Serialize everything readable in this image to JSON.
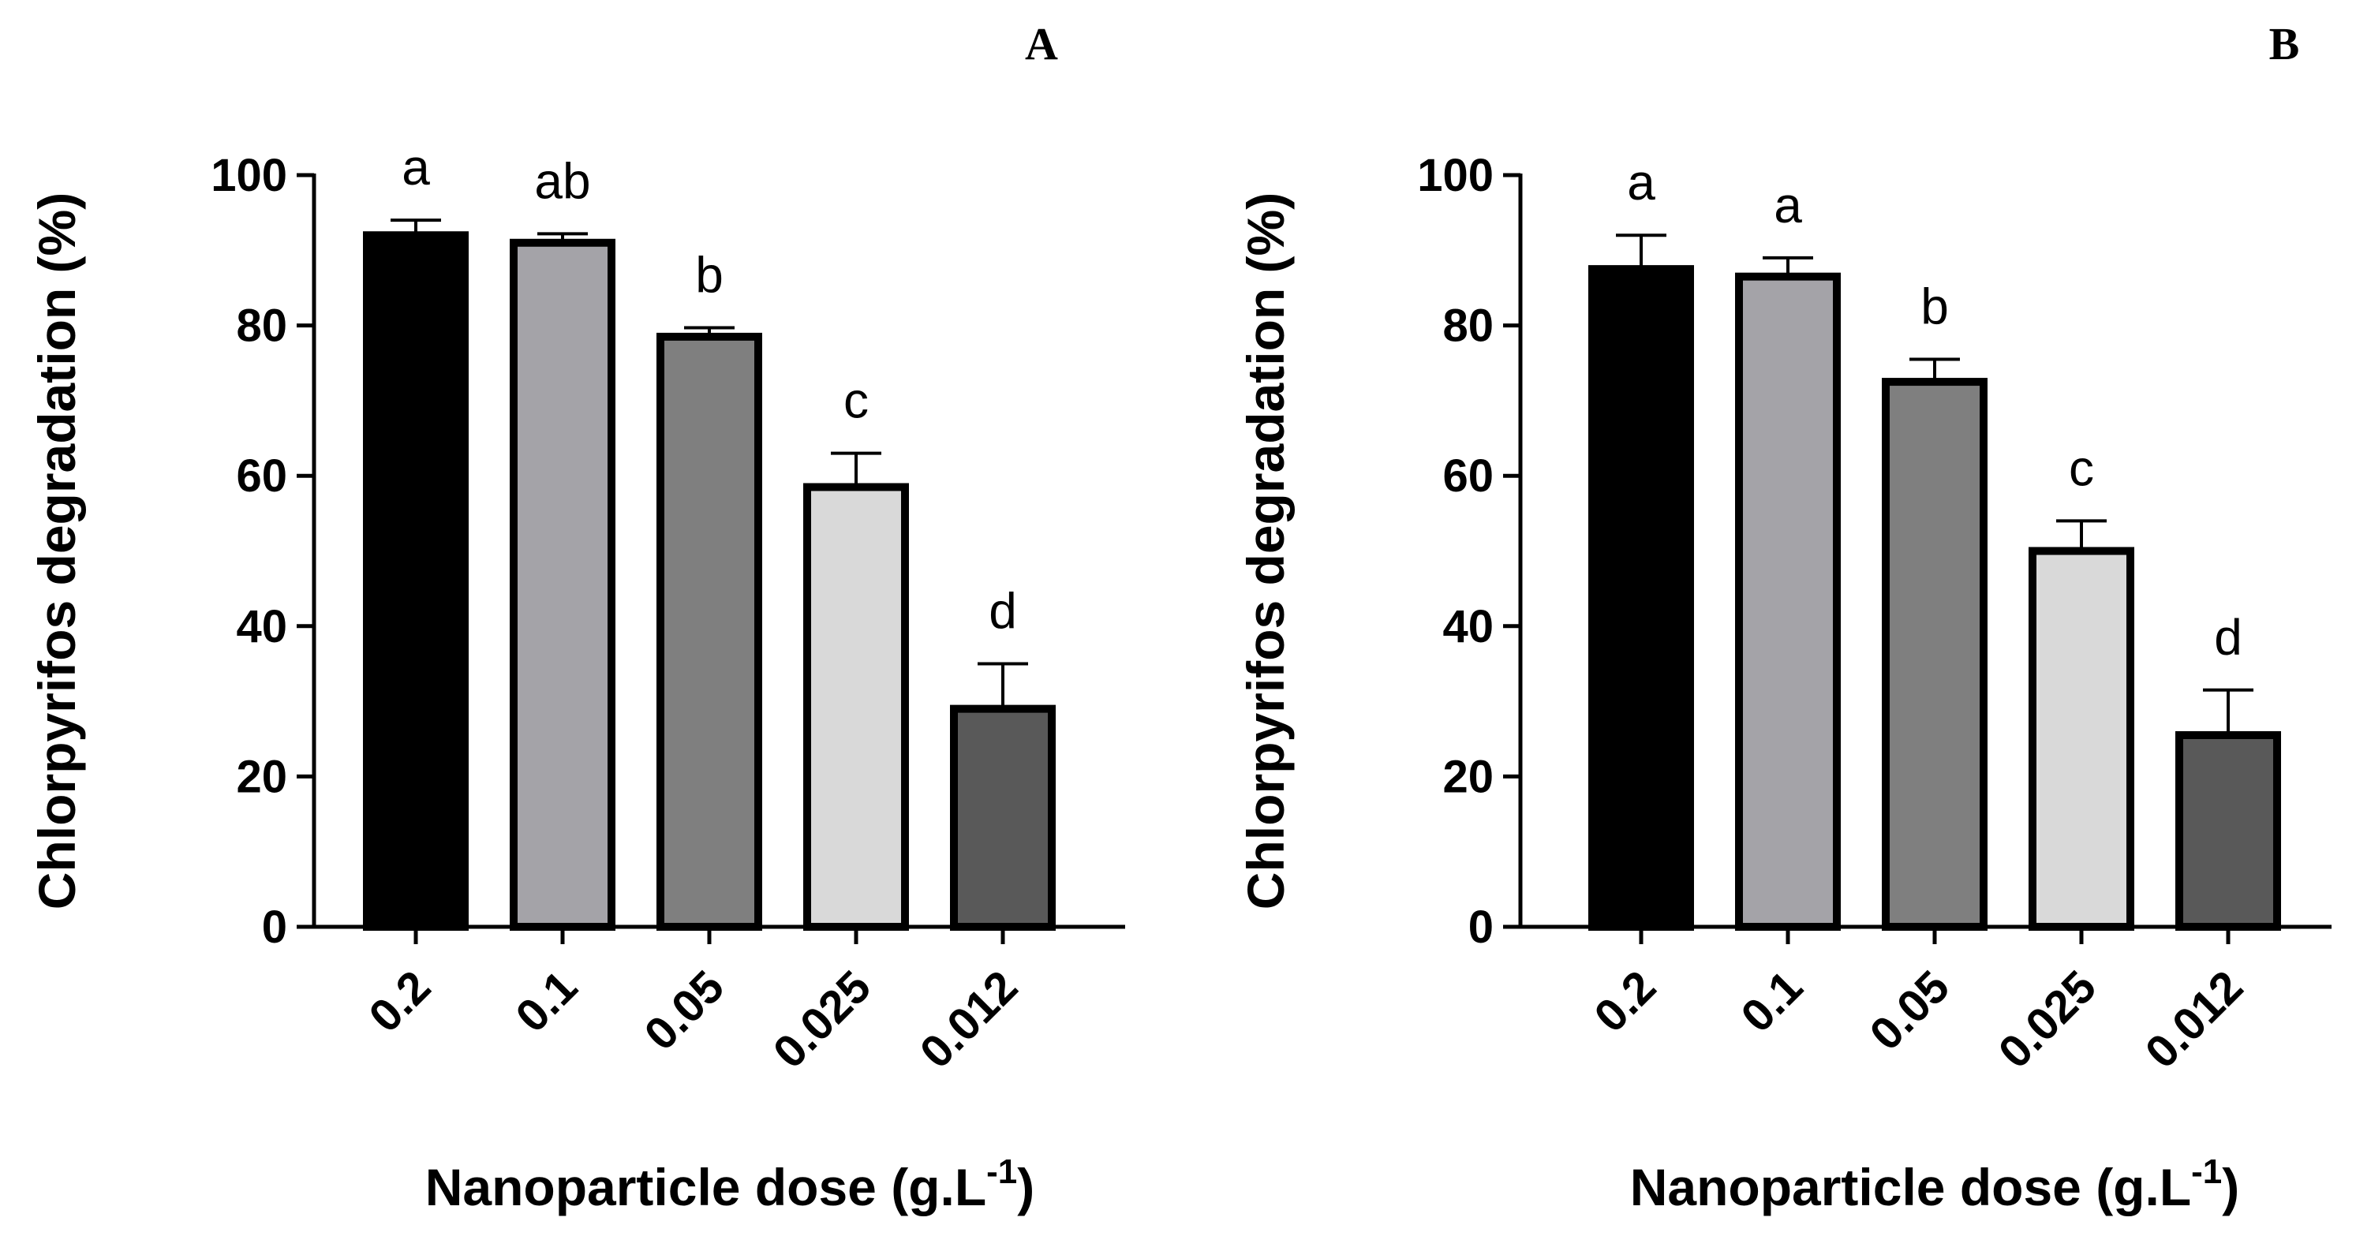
{
  "chart_data": [
    {
      "type": "bar",
      "panel": "A",
      "categories": [
        "0.2",
        "0.1",
        "0.05",
        "0.025",
        "0.012"
      ],
      "values": [
        92,
        91,
        78.5,
        58.5,
        29
      ],
      "errors": [
        2,
        1.2,
        1.2,
        4.5,
        6
      ],
      "significance": [
        "a",
        "ab",
        "b",
        "c",
        "d"
      ],
      "colors": [
        "#000000",
        "#a4a3a8",
        "#7f7f7f",
        "#d9d9d9",
        "#595959"
      ],
      "ylabel": "Chlorpyrifos degradation (%)",
      "xlabel": "Nanoparticle dose (g.L",
      "xlabel_superscript": "-1",
      "xlabel_suffix": ")",
      "ylim": [
        0,
        100
      ],
      "yticks": [
        "0",
        "20",
        "40",
        "60",
        "80",
        "100"
      ]
    },
    {
      "type": "bar",
      "panel": "B",
      "categories": [
        "0.2",
        "0.1",
        "0.05",
        "0.025",
        "0.012"
      ],
      "values": [
        87.5,
        86.5,
        72.5,
        50,
        25.5
      ],
      "errors": [
        4.5,
        2.5,
        3,
        4,
        6
      ],
      "significance": [
        "a",
        "a",
        "b",
        "c",
        "d"
      ],
      "colors": [
        "#000000",
        "#a4a3a8",
        "#7f7f7f",
        "#d9d9d9",
        "#595959"
      ],
      "ylabel": "Chlorpyrifos degradation (%)",
      "xlabel": "Nanoparticle dose (g.L",
      "xlabel_superscript": "-1",
      "xlabel_suffix": ")",
      "ylim": [
        0,
        100
      ],
      "yticks": [
        "0",
        "20",
        "40",
        "60",
        "80",
        "100"
      ]
    }
  ]
}
